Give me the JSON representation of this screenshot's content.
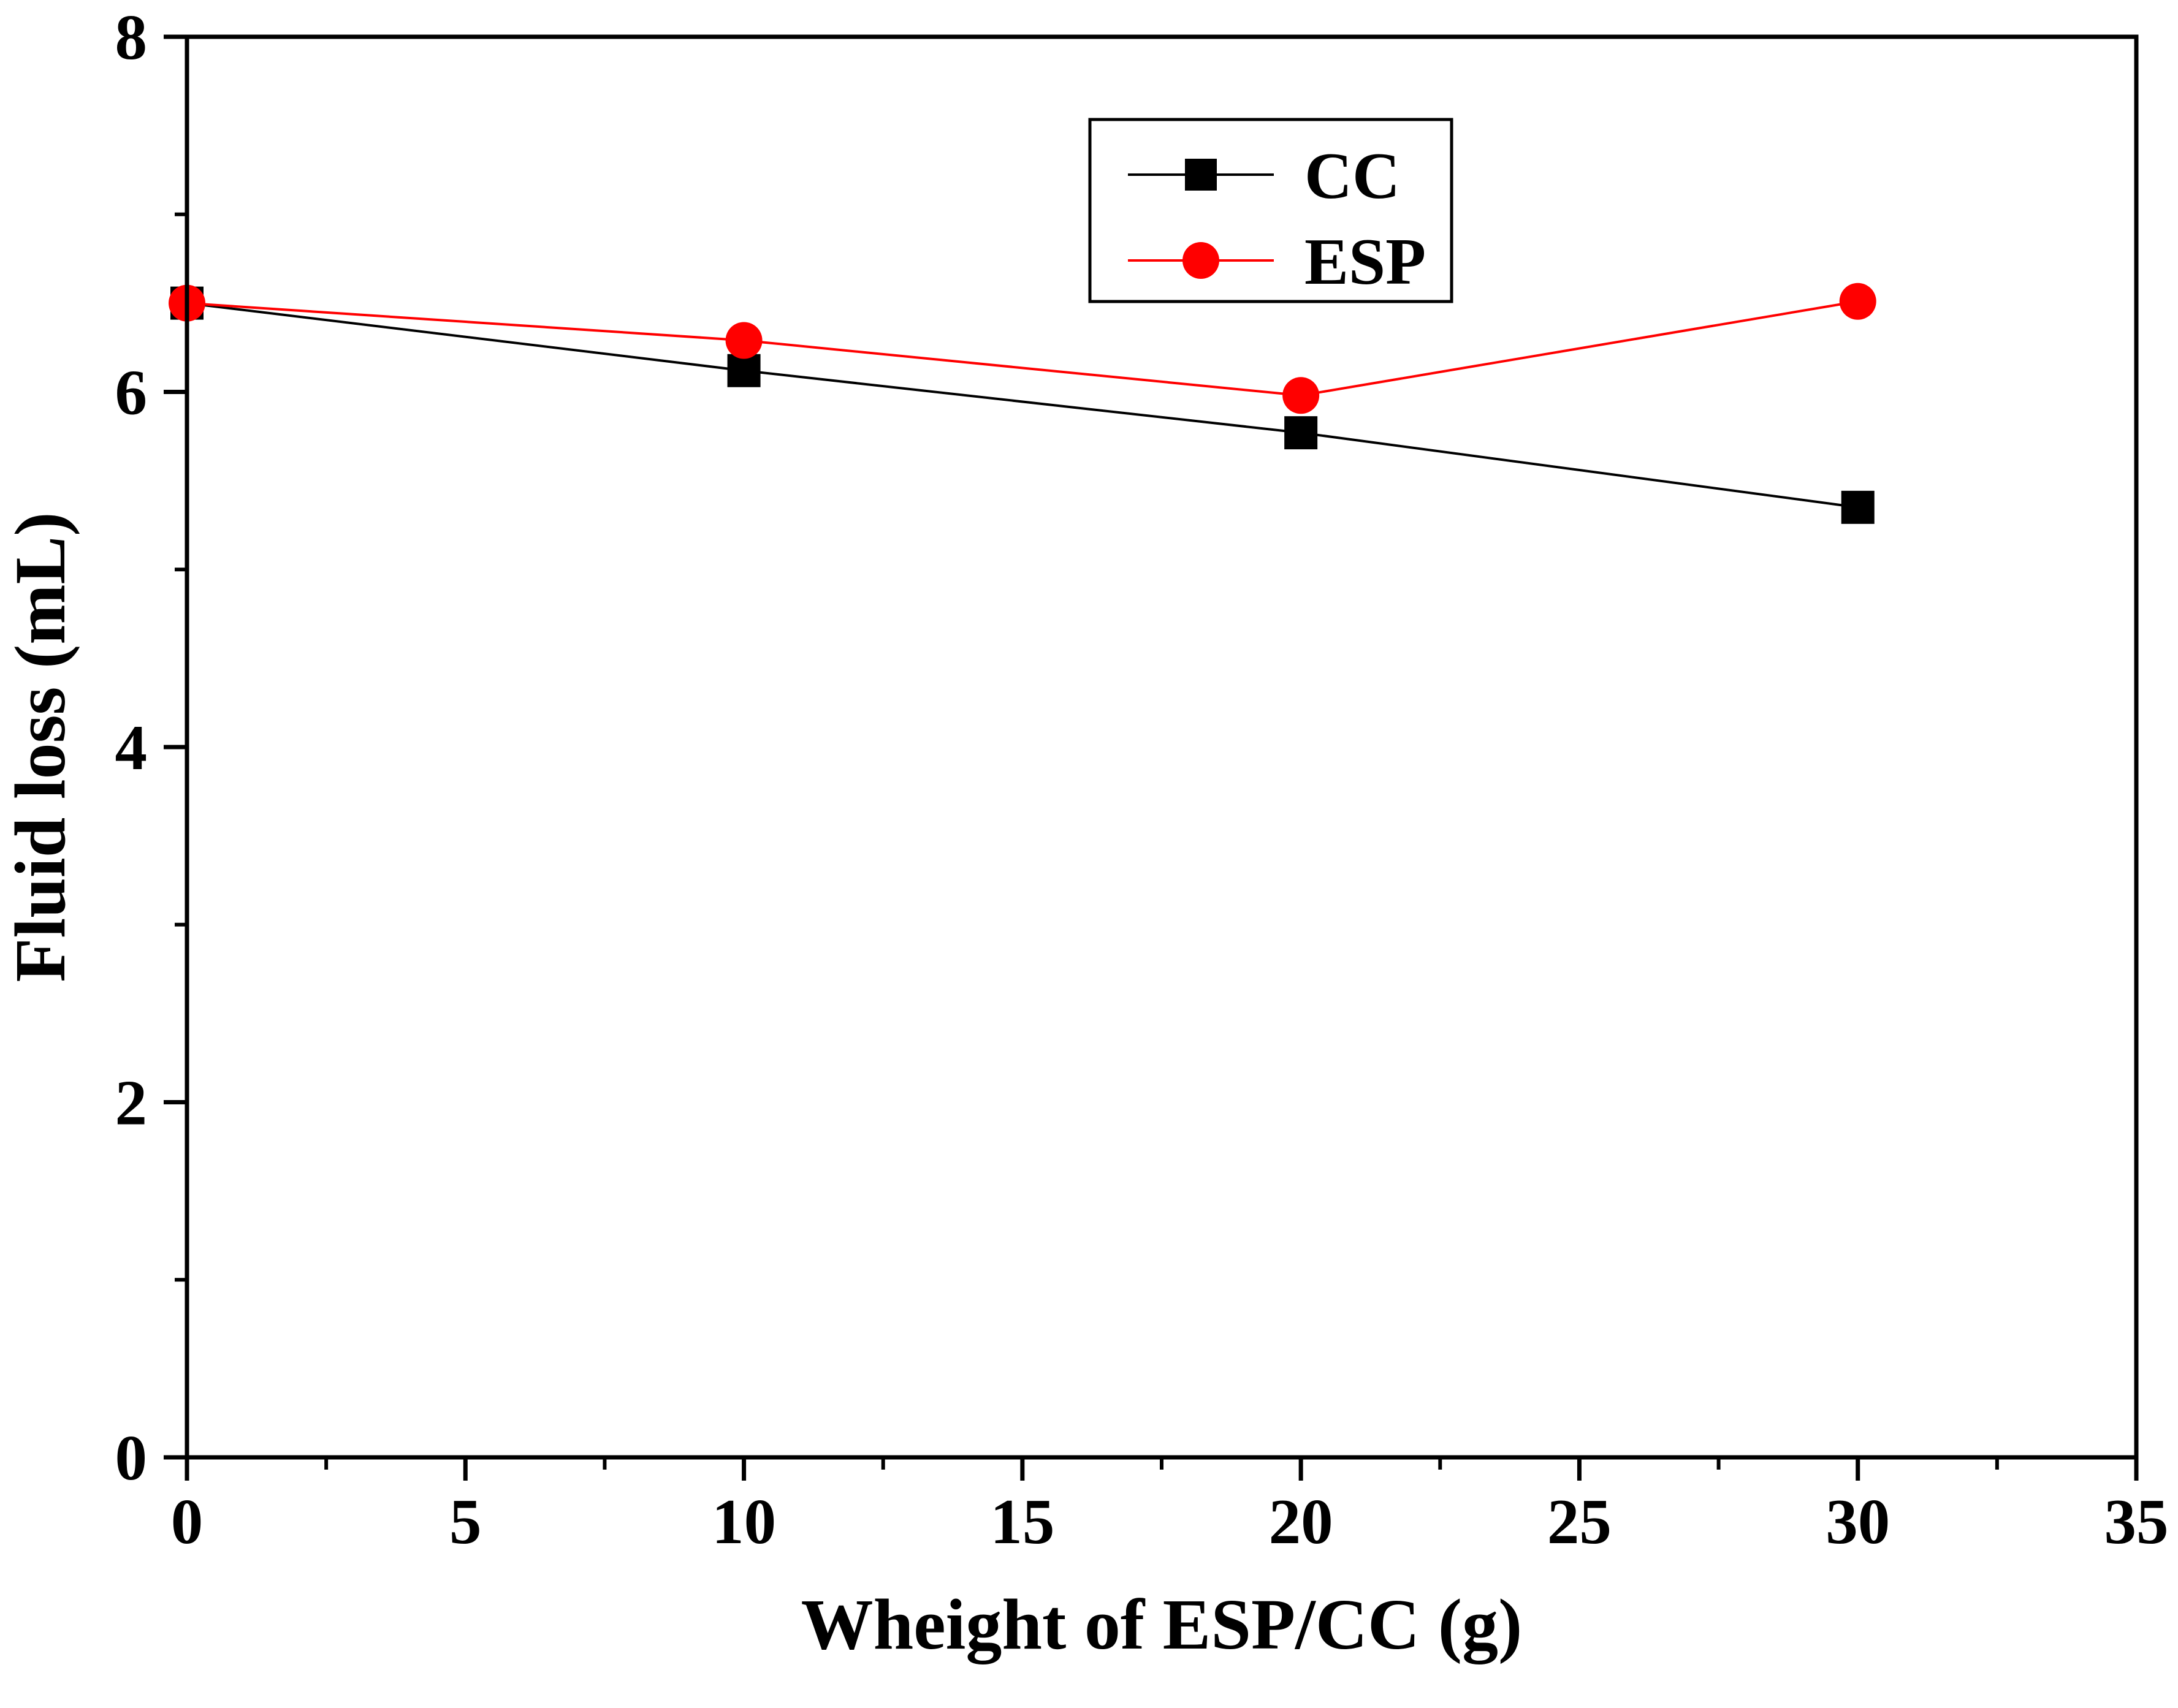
{
  "chart_data": {
    "type": "line",
    "title": "",
    "xlabel": "Wheight of ESP/CC (g)",
    "ylabel": "Fluid loss (mL)",
    "xlim": [
      0,
      35
    ],
    "ylim": [
      0,
      8
    ],
    "x_ticks": [
      0,
      5,
      10,
      15,
      20,
      25,
      30,
      35
    ],
    "x_tick_labels": [
      "0",
      "5",
      "10",
      "15",
      "20",
      "25",
      "30",
      "35"
    ],
    "y_ticks": [
      0,
      2,
      4,
      6,
      8
    ],
    "y_tick_labels": [
      "0",
      "2",
      "4",
      "6",
      "8"
    ],
    "grid": false,
    "legend_position": "top-center",
    "series": [
      {
        "name": "CC",
        "color": "#000000",
        "marker": "square",
        "x": [
          0,
          10,
          20,
          30
        ],
        "y": [
          6.5,
          6.12,
          5.77,
          5.35
        ]
      },
      {
        "name": "ESP",
        "color": "#ff0000",
        "marker": "circle",
        "x": [
          0,
          10,
          20,
          30
        ],
        "y": [
          6.5,
          6.29,
          5.98,
          6.51
        ]
      }
    ]
  }
}
